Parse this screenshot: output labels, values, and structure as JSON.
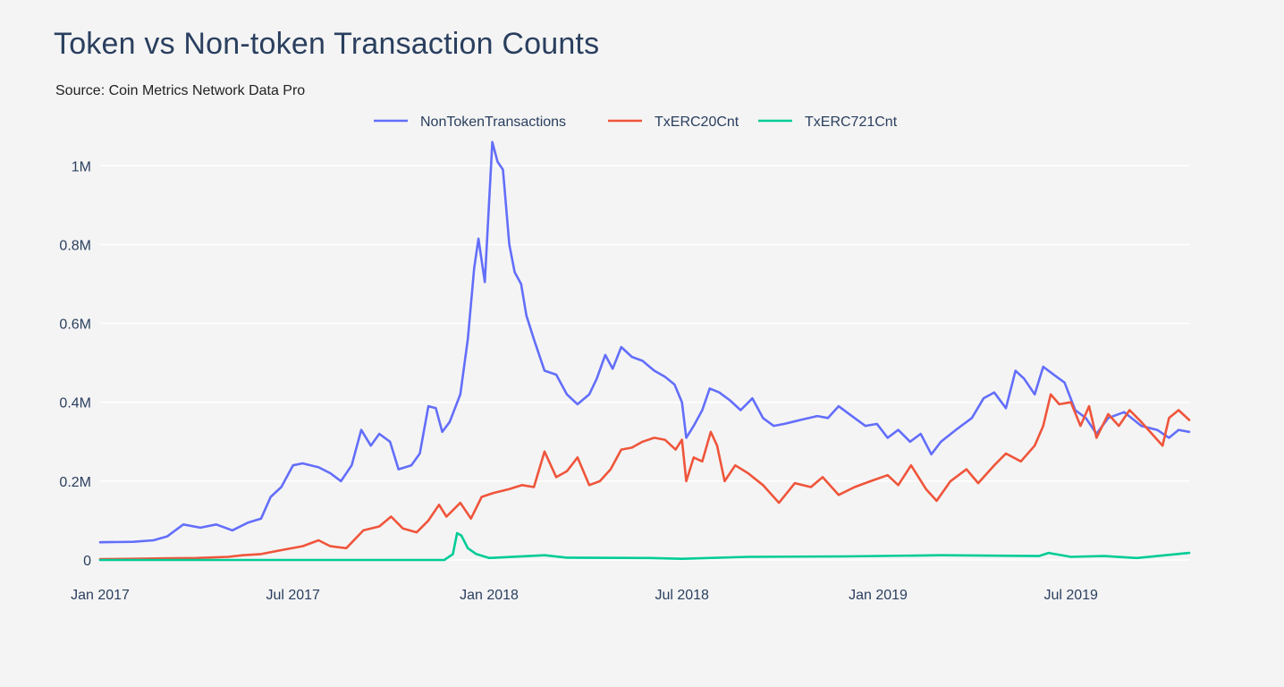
{
  "title": "Token vs Non-token Transaction Counts",
  "subtitle": "Source: Coin Metrics Network Data Pro",
  "chart_data": {
    "type": "line",
    "title": "Token vs Non-token Transaction Counts",
    "subtitle": "Source: Coin Metrics Network Data Pro",
    "xlabel": "",
    "ylabel": "",
    "xlim": [
      "2017-01-01",
      "2019-10-20"
    ],
    "ylim": [
      0,
      1080000
    ],
    "grid": true,
    "legend": "top-center",
    "x_ticks": [
      {
        "date": "2017-01-01",
        "label": "Jan 2017"
      },
      {
        "date": "2017-07-01",
        "label": "Jul 2017"
      },
      {
        "date": "2018-01-01",
        "label": "Jan 2018"
      },
      {
        "date": "2018-07-01",
        "label": "Jul 2018"
      },
      {
        "date": "2019-01-01",
        "label": "Jan 2019"
      },
      {
        "date": "2019-07-01",
        "label": "Jul 2019"
      }
    ],
    "y_ticks": [
      {
        "value": 0,
        "label": "0"
      },
      {
        "value": 200000,
        "label": "0.2M"
      },
      {
        "value": 400000,
        "label": "0.4M"
      },
      {
        "value": 600000,
        "label": "0.6M"
      },
      {
        "value": 800000,
        "label": "0.8M"
      },
      {
        "value": 1000000,
        "label": "1M"
      }
    ],
    "series": [
      {
        "name": "NonTokenTransactions",
        "color": "#636efa",
        "points": [
          [
            "2017-01-01",
            45000
          ],
          [
            "2017-02-01",
            46000
          ],
          [
            "2017-02-20",
            50000
          ],
          [
            "2017-03-05",
            60000
          ],
          [
            "2017-03-20",
            90000
          ],
          [
            "2017-04-05",
            82000
          ],
          [
            "2017-04-20",
            90000
          ],
          [
            "2017-05-05",
            75000
          ],
          [
            "2017-05-20",
            95000
          ],
          [
            "2017-06-01",
            105000
          ],
          [
            "2017-06-10",
            160000
          ],
          [
            "2017-06-20",
            185000
          ],
          [
            "2017-07-01",
            240000
          ],
          [
            "2017-07-10",
            245000
          ],
          [
            "2017-07-25",
            235000
          ],
          [
            "2017-08-05",
            220000
          ],
          [
            "2017-08-15",
            200000
          ],
          [
            "2017-08-25",
            240000
          ],
          [
            "2017-09-03",
            330000
          ],
          [
            "2017-09-12",
            290000
          ],
          [
            "2017-09-20",
            320000
          ],
          [
            "2017-09-30",
            300000
          ],
          [
            "2017-10-08",
            230000
          ],
          [
            "2017-10-20",
            240000
          ],
          [
            "2017-10-28",
            270000
          ],
          [
            "2017-11-05",
            390000
          ],
          [
            "2017-11-12",
            385000
          ],
          [
            "2017-11-18",
            325000
          ],
          [
            "2017-11-25",
            350000
          ],
          [
            "2017-12-05",
            420000
          ],
          [
            "2017-12-12",
            560000
          ],
          [
            "2017-12-18",
            740000
          ],
          [
            "2017-12-22",
            815000
          ],
          [
            "2017-12-28",
            705000
          ],
          [
            "2018-01-04",
            1060000
          ],
          [
            "2018-01-09",
            1010000
          ],
          [
            "2018-01-14",
            990000
          ],
          [
            "2018-01-20",
            800000
          ],
          [
            "2018-01-25",
            730000
          ],
          [
            "2018-01-31",
            700000
          ],
          [
            "2018-02-05",
            620000
          ],
          [
            "2018-02-12",
            560000
          ],
          [
            "2018-02-22",
            480000
          ],
          [
            "2018-03-05",
            470000
          ],
          [
            "2018-03-15",
            420000
          ],
          [
            "2018-03-25",
            395000
          ],
          [
            "2018-04-05",
            420000
          ],
          [
            "2018-04-12",
            460000
          ],
          [
            "2018-04-20",
            520000
          ],
          [
            "2018-04-27",
            485000
          ],
          [
            "2018-05-05",
            540000
          ],
          [
            "2018-05-15",
            515000
          ],
          [
            "2018-05-25",
            505000
          ],
          [
            "2018-06-05",
            480000
          ],
          [
            "2018-06-15",
            465000
          ],
          [
            "2018-06-24",
            445000
          ],
          [
            "2018-07-01",
            400000
          ],
          [
            "2018-07-05",
            310000
          ],
          [
            "2018-07-12",
            340000
          ],
          [
            "2018-07-20",
            380000
          ],
          [
            "2018-07-27",
            435000
          ],
          [
            "2018-08-05",
            425000
          ],
          [
            "2018-08-15",
            405000
          ],
          [
            "2018-08-25",
            380000
          ],
          [
            "2018-09-05",
            410000
          ],
          [
            "2018-09-15",
            360000
          ],
          [
            "2018-09-25",
            340000
          ],
          [
            "2018-10-05",
            345000
          ],
          [
            "2018-10-20",
            355000
          ],
          [
            "2018-11-05",
            365000
          ],
          [
            "2018-11-15",
            360000
          ],
          [
            "2018-11-25",
            390000
          ],
          [
            "2018-12-05",
            370000
          ],
          [
            "2018-12-20",
            340000
          ],
          [
            "2018-12-31",
            345000
          ],
          [
            "2019-01-10",
            310000
          ],
          [
            "2019-01-20",
            330000
          ],
          [
            "2019-01-31",
            300000
          ],
          [
            "2019-02-10",
            320000
          ],
          [
            "2019-02-20",
            268000
          ],
          [
            "2019-03-01",
            300000
          ],
          [
            "2019-03-15",
            330000
          ],
          [
            "2019-03-30",
            360000
          ],
          [
            "2019-04-10",
            410000
          ],
          [
            "2019-04-20",
            425000
          ],
          [
            "2019-05-01",
            385000
          ],
          [
            "2019-05-10",
            480000
          ],
          [
            "2019-05-18",
            460000
          ],
          [
            "2019-05-28",
            420000
          ],
          [
            "2019-06-05",
            490000
          ],
          [
            "2019-06-15",
            470000
          ],
          [
            "2019-06-25",
            450000
          ],
          [
            "2019-07-05",
            380000
          ],
          [
            "2019-07-15",
            360000
          ],
          [
            "2019-07-25",
            320000
          ],
          [
            "2019-08-05",
            360000
          ],
          [
            "2019-08-20",
            375000
          ],
          [
            "2019-09-05",
            340000
          ],
          [
            "2019-09-20",
            330000
          ],
          [
            "2019-10-01",
            310000
          ],
          [
            "2019-10-10",
            330000
          ],
          [
            "2019-10-20",
            325000
          ]
        ]
      },
      {
        "name": "TxERC20Cnt",
        "color": "#ef553b",
        "points": [
          [
            "2017-01-01",
            2000
          ],
          [
            "2017-02-01",
            3000
          ],
          [
            "2017-03-01",
            4000
          ],
          [
            "2017-04-01",
            5000
          ],
          [
            "2017-05-01",
            8000
          ],
          [
            "2017-05-15",
            12000
          ],
          [
            "2017-06-01",
            15000
          ],
          [
            "2017-06-20",
            25000
          ],
          [
            "2017-07-10",
            35000
          ],
          [
            "2017-07-25",
            50000
          ],
          [
            "2017-08-05",
            35000
          ],
          [
            "2017-08-20",
            30000
          ],
          [
            "2017-09-05",
            75000
          ],
          [
            "2017-09-20",
            85000
          ],
          [
            "2017-10-01",
            110000
          ],
          [
            "2017-10-12",
            80000
          ],
          [
            "2017-10-25",
            70000
          ],
          [
            "2017-11-05",
            100000
          ],
          [
            "2017-11-15",
            140000
          ],
          [
            "2017-11-22",
            110000
          ],
          [
            "2017-12-05",
            145000
          ],
          [
            "2017-12-15",
            105000
          ],
          [
            "2017-12-25",
            160000
          ],
          [
            "2018-01-05",
            170000
          ],
          [
            "2018-01-20",
            180000
          ],
          [
            "2018-02-01",
            190000
          ],
          [
            "2018-02-12",
            185000
          ],
          [
            "2018-02-22",
            275000
          ],
          [
            "2018-03-05",
            210000
          ],
          [
            "2018-03-15",
            225000
          ],
          [
            "2018-03-25",
            260000
          ],
          [
            "2018-04-05",
            190000
          ],
          [
            "2018-04-15",
            200000
          ],
          [
            "2018-04-25",
            230000
          ],
          [
            "2018-05-05",
            280000
          ],
          [
            "2018-05-15",
            285000
          ],
          [
            "2018-05-25",
            300000
          ],
          [
            "2018-06-05",
            310000
          ],
          [
            "2018-06-15",
            305000
          ],
          [
            "2018-06-25",
            280000
          ],
          [
            "2018-07-01",
            305000
          ],
          [
            "2018-07-05",
            200000
          ],
          [
            "2018-07-12",
            260000
          ],
          [
            "2018-07-20",
            250000
          ],
          [
            "2018-07-28",
            325000
          ],
          [
            "2018-08-03",
            290000
          ],
          [
            "2018-08-10",
            200000
          ],
          [
            "2018-08-20",
            240000
          ],
          [
            "2018-09-01",
            220000
          ],
          [
            "2018-09-15",
            190000
          ],
          [
            "2018-09-30",
            145000
          ],
          [
            "2018-10-15",
            195000
          ],
          [
            "2018-10-30",
            185000
          ],
          [
            "2018-11-10",
            210000
          ],
          [
            "2018-11-25",
            165000
          ],
          [
            "2018-12-10",
            185000
          ],
          [
            "2018-12-25",
            200000
          ],
          [
            "2019-01-10",
            215000
          ],
          [
            "2019-01-20",
            190000
          ],
          [
            "2019-02-01",
            240000
          ],
          [
            "2019-02-15",
            180000
          ],
          [
            "2019-02-25",
            150000
          ],
          [
            "2019-03-10",
            200000
          ],
          [
            "2019-03-25",
            230000
          ],
          [
            "2019-04-05",
            195000
          ],
          [
            "2019-04-20",
            240000
          ],
          [
            "2019-05-01",
            270000
          ],
          [
            "2019-05-15",
            250000
          ],
          [
            "2019-05-28",
            290000
          ],
          [
            "2019-06-05",
            340000
          ],
          [
            "2019-06-12",
            420000
          ],
          [
            "2019-06-20",
            395000
          ],
          [
            "2019-07-01",
            400000
          ],
          [
            "2019-07-10",
            340000
          ],
          [
            "2019-07-18",
            390000
          ],
          [
            "2019-07-25",
            310000
          ],
          [
            "2019-08-05",
            370000
          ],
          [
            "2019-08-15",
            340000
          ],
          [
            "2019-08-25",
            380000
          ],
          [
            "2019-09-05",
            350000
          ],
          [
            "2019-09-15",
            320000
          ],
          [
            "2019-09-25",
            290000
          ],
          [
            "2019-10-01",
            360000
          ],
          [
            "2019-10-10",
            380000
          ],
          [
            "2019-10-20",
            355000
          ]
        ]
      },
      {
        "name": "TxERC721Cnt",
        "color": "#00cc96",
        "points": [
          [
            "2017-01-01",
            0
          ],
          [
            "2017-11-20",
            0
          ],
          [
            "2017-11-28",
            15000
          ],
          [
            "2017-12-02",
            68000
          ],
          [
            "2017-12-06",
            62000
          ],
          [
            "2017-12-12",
            30000
          ],
          [
            "2017-12-20",
            15000
          ],
          [
            "2018-01-01",
            5000
          ],
          [
            "2018-02-22",
            12000
          ],
          [
            "2018-03-15",
            6000
          ],
          [
            "2018-06-01",
            5000
          ],
          [
            "2018-07-01",
            3000
          ],
          [
            "2018-09-01",
            8000
          ],
          [
            "2018-12-01",
            9000
          ],
          [
            "2019-03-01",
            12000
          ],
          [
            "2019-06-01",
            10000
          ],
          [
            "2019-06-10",
            18000
          ],
          [
            "2019-07-01",
            8000
          ],
          [
            "2019-08-01",
            10000
          ],
          [
            "2019-09-01",
            5000
          ],
          [
            "2019-10-20",
            18000
          ]
        ]
      }
    ]
  }
}
